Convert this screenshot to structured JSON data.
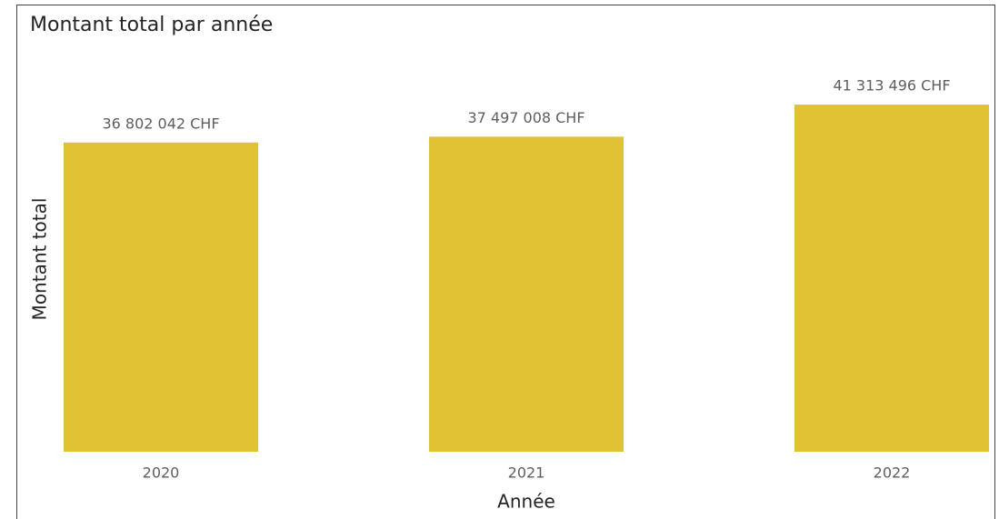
{
  "chart_data": {
    "type": "bar",
    "title": "Montant total par année",
    "x_label": "Année",
    "y_label": "Montant total",
    "categories": [
      "2020",
      "2021",
      "2022"
    ],
    "values": [
      36802042,
      37497008,
      41313496
    ],
    "value_labels": [
      "36 802 042 CHF",
      "37 497 008 CHF",
      "41 313 496 CHF"
    ],
    "color": "#e0c232",
    "ylim": [
      0,
      45000000
    ]
  }
}
